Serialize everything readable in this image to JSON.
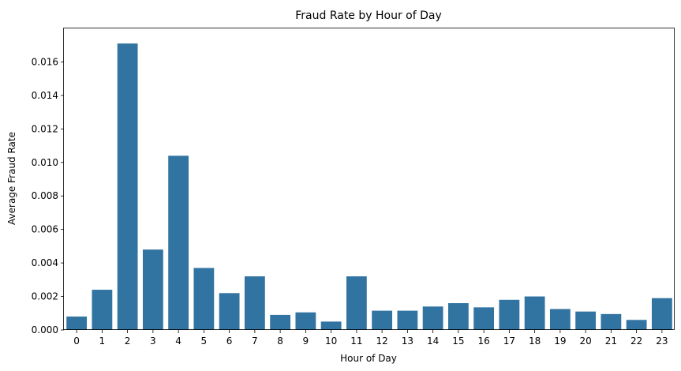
{
  "chart_data": {
    "type": "bar",
    "title": "Fraud Rate by Hour of Day",
    "xlabel": "Hour of Day",
    "ylabel": "Average Fraud Rate",
    "categories": [
      "0",
      "1",
      "2",
      "3",
      "4",
      "5",
      "6",
      "7",
      "8",
      "9",
      "10",
      "11",
      "12",
      "13",
      "14",
      "15",
      "16",
      "17",
      "18",
      "19",
      "20",
      "21",
      "22",
      "23"
    ],
    "values": [
      0.0008,
      0.0024,
      0.0171,
      0.0048,
      0.0104,
      0.0037,
      0.0022,
      0.0032,
      0.0009,
      0.00105,
      0.0005,
      0.0032,
      0.00115,
      0.00115,
      0.0014,
      0.0016,
      0.00135,
      0.0018,
      0.002,
      0.00125,
      0.0011,
      0.00095,
      0.0006,
      0.0019
    ],
    "ylim": [
      0,
      0.018
    ],
    "yticks": [
      "0.000",
      "0.002",
      "0.004",
      "0.006",
      "0.008",
      "0.010",
      "0.012",
      "0.014",
      "0.016"
    ],
    "bar_color": "#3274a1",
    "grid": false,
    "legend": "none"
  }
}
